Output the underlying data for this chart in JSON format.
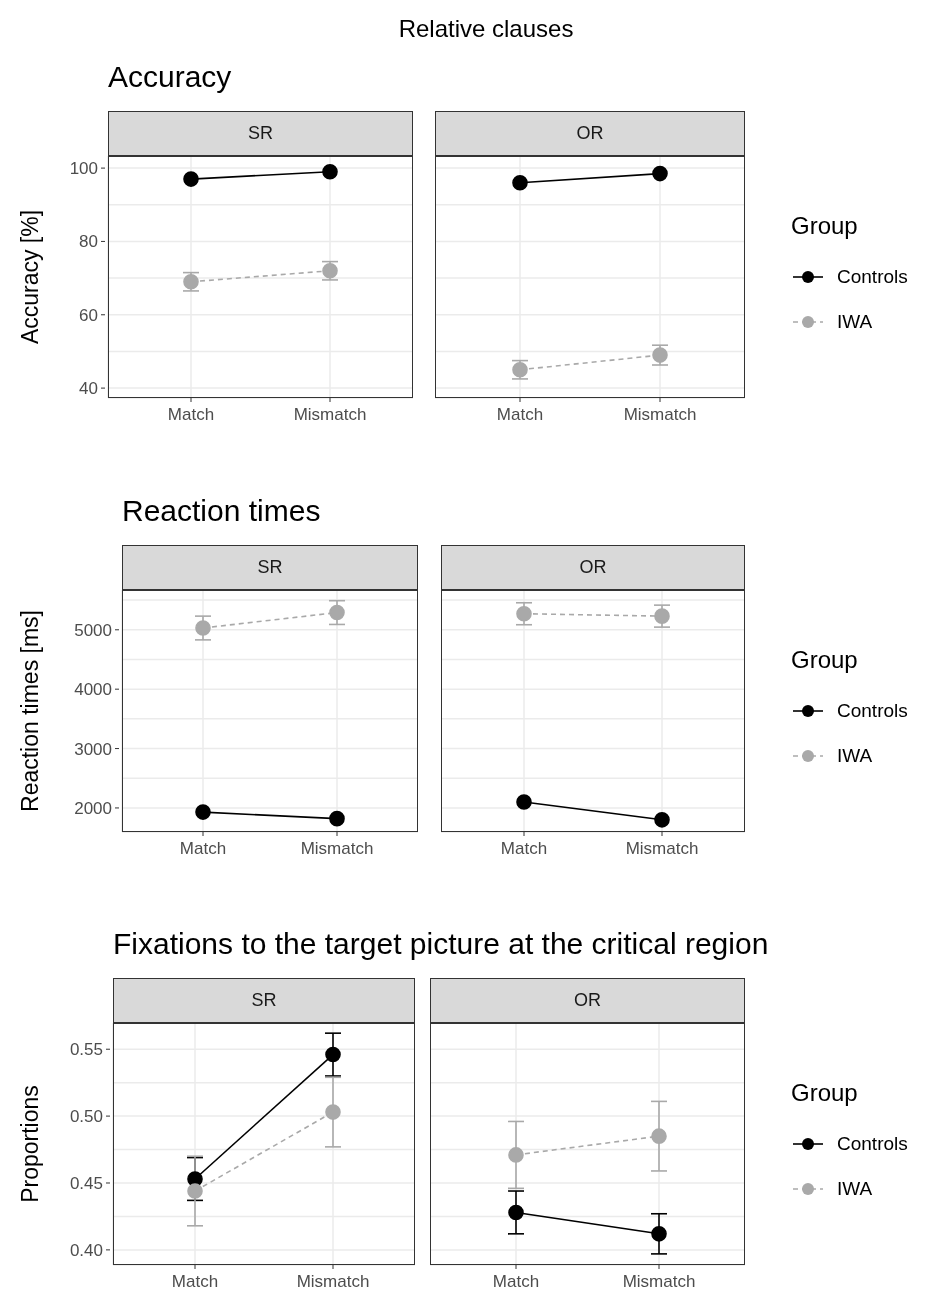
{
  "chart_data": [
    {
      "type": "line",
      "title": "Accuracy",
      "subtitle": "SR",
      "annotations": [
        "Relative clauses"
      ],
      "ylabel": "Accuracy [%]",
      "categories": [
        "Match",
        "Mismatch"
      ],
      "ylim": [
        37.3,
        103.3
      ],
      "yticks": [
        40,
        {
          "value": 50,
          "label": null
        },
        60,
        {
          "value": 70,
          "label": null
        },
        80,
        {
          "value": 90,
          "label": null
        },
        100
      ],
      "grid": true,
      "legend": false,
      "marker": "circle",
      "series": [
        {
          "color": "#000000",
          "line_style": "solid",
          "values": [
            97,
            99
          ]
        },
        {
          "color": "#a9a9a9",
          "line_style": "dashed",
          "values": [
            69,
            72
          ],
          "errors": [
            2.5,
            2.5
          ]
        }
      ]
    },
    {
      "type": "line",
      "subtitle": "OR",
      "categories": [
        "Match",
        "Mismatch"
      ],
      "ylim": [
        37.3,
        103.3
      ],
      "yticks": [
        40,
        {
          "value": 50,
          "label": null
        },
        60,
        {
          "value": 70,
          "label": null
        },
        80,
        {
          "value": 90,
          "label": null
        },
        100
      ],
      "tick_labels": "x",
      "grid": true,
      "legend": "right",
      "legend_title": "Group",
      "marker": "circle",
      "series": [
        {
          "name": "Controls",
          "color": "#000000",
          "line_style": "solid",
          "values": [
            96,
            98.5
          ]
        },
        {
          "name": "IWA",
          "color": "#a9a9a9",
          "line_style": "dashed",
          "values": [
            45,
            49
          ],
          "errors": [
            2.5,
            2.7
          ]
        }
      ]
    },
    {
      "type": "line",
      "title": "Reaction times",
      "subtitle": "SR",
      "ylabel": "Reaction times [ms]",
      "categories": [
        "Match",
        "Mismatch"
      ],
      "ylim": [
        1595,
        5670
      ],
      "yticks": [
        2000,
        {
          "value": 2500,
          "label": null
        },
        3000,
        {
          "value": 3500,
          "label": null
        },
        4000,
        {
          "value": 4500,
          "label": null
        },
        5000,
        {
          "value": 5500,
          "label": null
        }
      ],
      "grid": true,
      "legend": false,
      "marker": "circle",
      "series": [
        {
          "color": "#000000",
          "line_style": "solid",
          "values": [
            1930,
            1820
          ]
        },
        {
          "color": "#a9a9a9",
          "line_style": "dashed",
          "values": [
            5030,
            5290
          ],
          "errors": [
            200,
            200
          ]
        }
      ]
    },
    {
      "type": "line",
      "subtitle": "OR",
      "categories": [
        "Match",
        "Mismatch"
      ],
      "ylim": [
        1595,
        5670
      ],
      "yticks": [
        2000,
        {
          "value": 2500,
          "label": null
        },
        3000,
        {
          "value": 3500,
          "label": null
        },
        4000,
        {
          "value": 4500,
          "label": null
        },
        5000,
        {
          "value": 5500,
          "label": null
        }
      ],
      "tick_labels": "x",
      "grid": true,
      "legend": "right",
      "legend_title": "Group",
      "marker": "circle",
      "series": [
        {
          "name": "Controls",
          "color": "#000000",
          "line_style": "solid",
          "values": [
            2100,
            1800
          ]
        },
        {
          "name": "IWA",
          "color": "#a9a9a9",
          "line_style": "dashed",
          "values": [
            5270,
            5230
          ],
          "errors": [
            185,
            185
          ]
        }
      ]
    },
    {
      "type": "line",
      "title": "Fixations to the target picture at the critical region",
      "subtitle": "SR",
      "ylabel": "Proportions",
      "categories": [
        "Match",
        "Mismatch"
      ],
      "ylim": [
        0.3887,
        0.5696
      ],
      "yticks": [
        {
          "value": 0.4,
          "label": "0.40"
        },
        {
          "value": 0.425,
          "label": null
        },
        0.45,
        {
          "value": 0.475,
          "label": null
        },
        {
          "value": 0.5,
          "label": "0.50"
        },
        {
          "value": 0.525,
          "label": null
        },
        0.55
      ],
      "grid": true,
      "legend": false,
      "marker": "circle",
      "series": [
        {
          "color": "#000000",
          "line_style": "solid",
          "values": [
            0.453,
            0.546
          ],
          "errors": [
            0.016,
            0.016
          ]
        },
        {
          "color": "#a9a9a9",
          "line_style": "dashed",
          "values": [
            0.444,
            0.503
          ],
          "errors": [
            0.026,
            0.026
          ]
        }
      ]
    },
    {
      "type": "line",
      "subtitle": "OR",
      "categories": [
        "Match",
        "Mismatch"
      ],
      "ylim": [
        0.3887,
        0.5696
      ],
      "yticks": [
        0.4,
        {
          "value": 0.425,
          "label": null
        },
        0.45,
        {
          "value": 0.475,
          "label": null
        },
        0.5,
        {
          "value": 0.525,
          "label": null
        },
        0.55
      ],
      "tick_labels": "x",
      "grid": true,
      "legend": "right",
      "legend_title": "Group",
      "marker": "circle",
      "series": [
        {
          "name": "Controls",
          "color": "#000000",
          "line_style": "solid",
          "values": [
            0.428,
            0.412
          ],
          "errors": [
            0.016,
            0.015
          ]
        },
        {
          "name": "IWA",
          "color": "#a9a9a9",
          "line_style": "dashed",
          "values": [
            0.471,
            0.485
          ],
          "errors": [
            0.025,
            0.026
          ]
        }
      ]
    }
  ]
}
